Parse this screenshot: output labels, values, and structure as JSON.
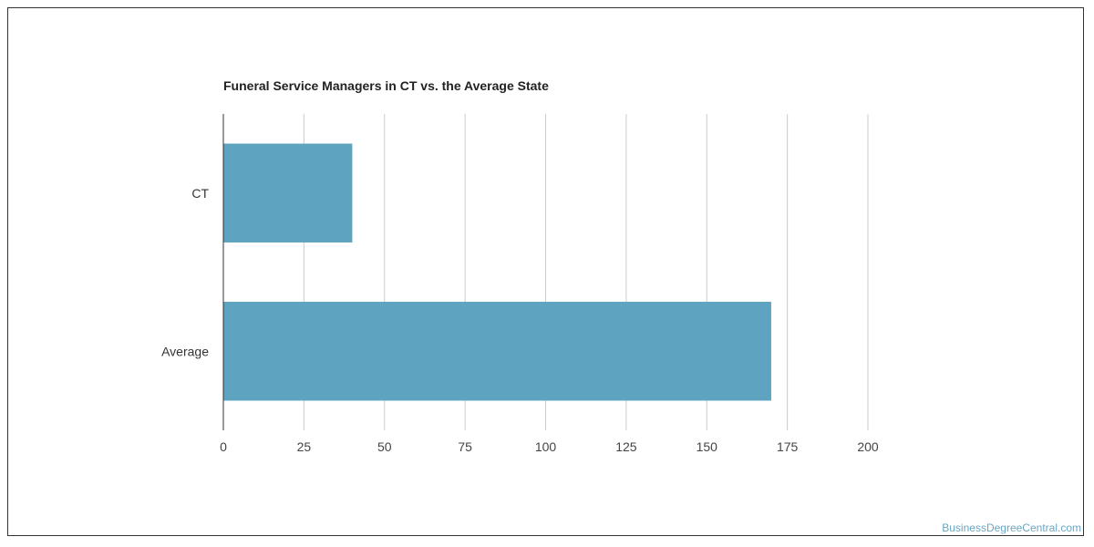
{
  "chart_data": {
    "type": "bar",
    "orientation": "horizontal",
    "title": "Funeral Service Managers in CT vs. the Average State",
    "categories": [
      "CT",
      "Average"
    ],
    "values": [
      40,
      170
    ],
    "xlim": [
      0,
      200
    ],
    "xticks": [
      0,
      25,
      50,
      75,
      100,
      125,
      150,
      175,
      200
    ],
    "grid": true,
    "bar_color": "#5ea3bf",
    "grid_color": "#cccccc"
  },
  "watermark": "BusinessDegreeCentral.com"
}
